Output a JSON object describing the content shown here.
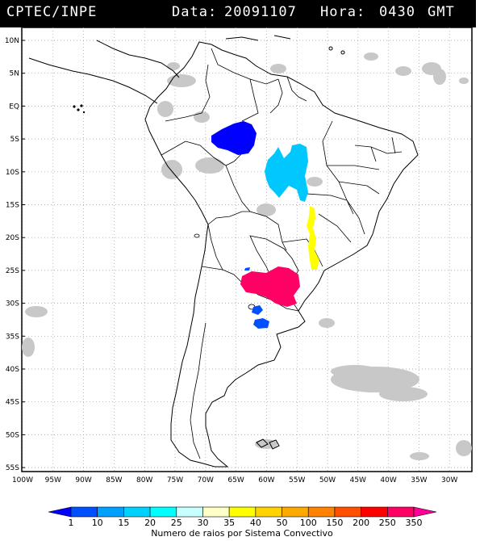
{
  "header": {
    "source": "CPTEC/INPE",
    "date_label": "Data:",
    "date_value": "20091107",
    "hour_label": "Hora:",
    "hour_value": "0430",
    "tz": "GMT"
  },
  "axes": {
    "lat_labels": [
      "10N",
      "5N",
      "EQ",
      "5S",
      "10S",
      "15S",
      "20S",
      "25S",
      "30S",
      "35S",
      "40S",
      "45S",
      "50S",
      "55S"
    ],
    "lon_labels": [
      "100W",
      "95W",
      "90W",
      "85W",
      "80W",
      "75W",
      "70W",
      "65W",
      "60W",
      "55W",
      "50W",
      "45W",
      "40W",
      "35W",
      "30W"
    ]
  },
  "legend": {
    "caption": "Numero de raios por Sistema Convectivo",
    "ticks": [
      "1",
      "10",
      "15",
      "20",
      "25",
      "30",
      "35",
      "40",
      "50",
      "100",
      "150",
      "200",
      "250",
      "350"
    ],
    "colors": [
      "#0000ff",
      "#0050ff",
      "#00a0ff",
      "#00d2ff",
      "#00ffff",
      "#c8ffff",
      "#ffffc8",
      "#ffff00",
      "#ffd200",
      "#ffaa00",
      "#ff8200",
      "#ff5000",
      "#ff0000",
      "#ff0064",
      "#ff0096"
    ]
  },
  "systems": [
    {
      "name": "amazonas",
      "color": "#0000ff"
    },
    {
      "name": "para",
      "color": "#00c8ff"
    },
    {
      "name": "mato-grosso-do-sul",
      "color": "#ffff00"
    },
    {
      "name": "paraguay-ne-argentina",
      "color": "#ff0064"
    },
    {
      "name": "argentina-small-1",
      "color": "#0050ff"
    },
    {
      "name": "argentina-small-2",
      "color": "#0050ff"
    }
  ]
}
